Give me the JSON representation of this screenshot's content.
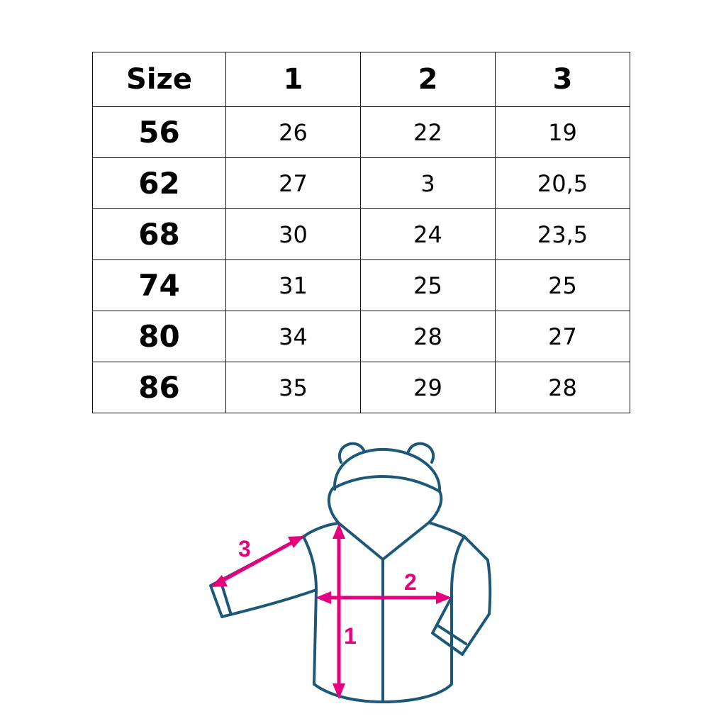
{
  "table": {
    "headers": [
      "Size",
      "1",
      "2",
      "3"
    ],
    "rows": [
      [
        "56",
        "26",
        "22",
        "19"
      ],
      [
        "62",
        "27",
        "3",
        "20,5"
      ],
      [
        "68",
        "30",
        "24",
        "23,5"
      ],
      [
        "74",
        "31",
        "25",
        "25"
      ],
      [
        "80",
        "34",
        "28",
        "27"
      ],
      [
        "86",
        "35",
        "29",
        "28"
      ]
    ]
  },
  "diagram": {
    "labels": {
      "length": "1",
      "width": "2",
      "sleeve": "3"
    },
    "outline_color": "#1d5878",
    "measure_color": "#e6007e"
  }
}
